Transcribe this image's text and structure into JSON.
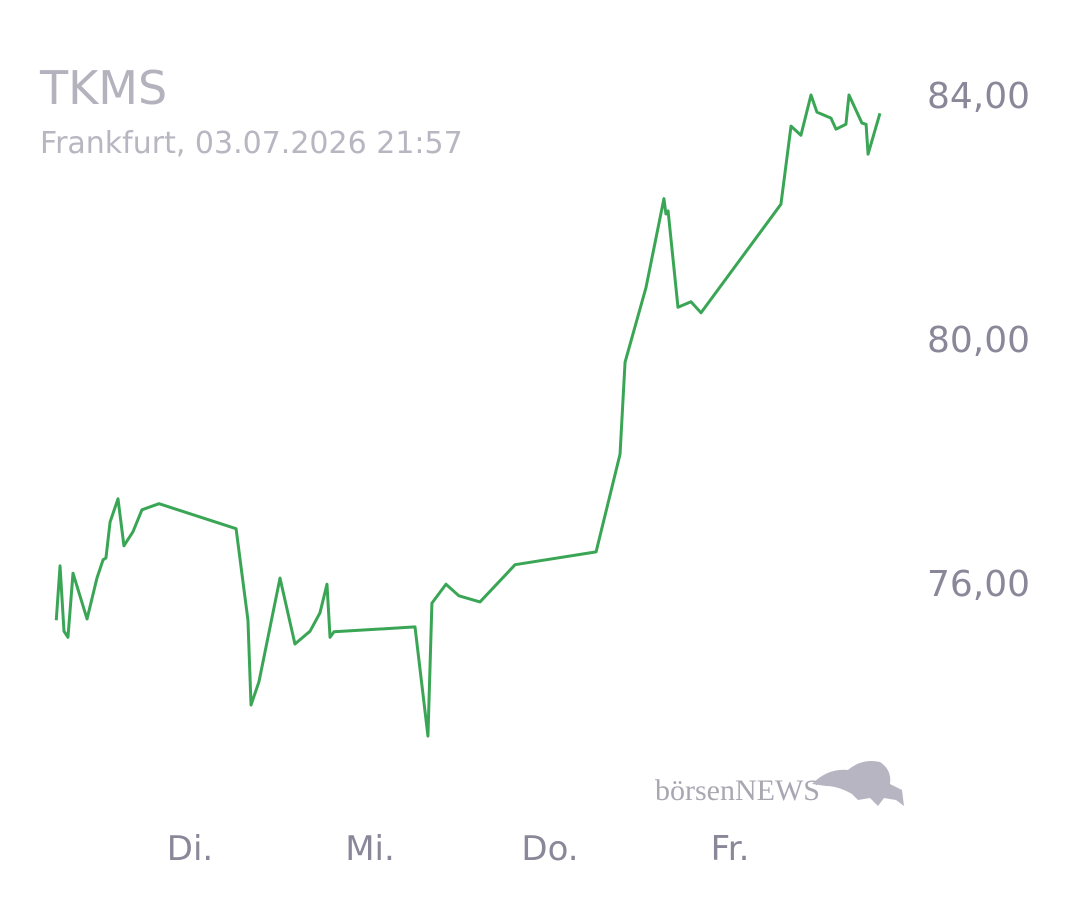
{
  "chart_data": {
    "type": "line",
    "title": "TKMS",
    "subtitle": "Frankfurt, 03.07.2026 21:57",
    "watermark": "börsenNEWS",
    "xlim": [
      0,
      5
    ],
    "xticks": [
      {
        "value": 1,
        "label": "Di."
      },
      {
        "value": 2,
        "label": "Mi."
      },
      {
        "value": 3,
        "label": "Do."
      },
      {
        "value": 4,
        "label": "Fr."
      }
    ],
    "ylim": [
      72.5,
      84.5
    ],
    "yticks": [
      {
        "value": 76,
        "label": "76,00"
      },
      {
        "value": 80,
        "label": "80,00"
      },
      {
        "value": 84,
        "label": "84,00"
      }
    ],
    "grid": false,
    "series": [
      {
        "color": "#3aa655",
        "x": [
          0.257,
          0.278,
          0.3,
          0.322,
          0.35,
          0.428,
          0.483,
          0.517,
          0.533,
          0.556,
          0.6,
          0.633,
          0.683,
          0.733,
          0.828,
          1.256,
          1.322,
          1.339,
          1.383,
          1.5,
          1.583,
          1.667,
          1.722,
          1.761,
          1.778,
          1.8,
          2.25,
          2.322,
          2.344,
          2.422,
          2.494,
          2.611,
          2.806,
          3.256,
          3.389,
          3.417,
          3.533,
          3.633,
          3.644,
          3.656,
          3.711,
          3.783,
          3.839,
          4.283,
          4.339,
          4.394,
          4.45,
          4.483,
          4.561,
          4.589,
          4.644,
          4.661,
          4.733,
          4.756,
          4.767,
          4.833
        ],
        "values": [
          75.39,
          76.28,
          75.21,
          75.11,
          76.16,
          75.41,
          76.08,
          76.38,
          76.41,
          77.0,
          77.38,
          76.61,
          76.84,
          77.2,
          77.3,
          76.89,
          75.39,
          74.0,
          74.38,
          76.08,
          75.0,
          75.21,
          75.51,
          75.98,
          75.11,
          75.2,
          75.28,
          73.49,
          75.67,
          75.98,
          75.79,
          75.69,
          76.3,
          76.51,
          78.11,
          79.62,
          80.84,
          82.3,
          82.05,
          82.1,
          80.52,
          80.61,
          80.43,
          82.21,
          83.49,
          83.34,
          84.0,
          83.72,
          83.62,
          83.44,
          83.52,
          84.0,
          83.54,
          83.52,
          83.03,
          83.7
        ]
      }
    ]
  }
}
